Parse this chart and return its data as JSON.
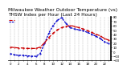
{
  "title": "Milwaukee Weather Outdoor Temperature (vs) THSW Index per Hour (Last 24 Hours)",
  "legend_temp": "Outdoor Temp",
  "legend_thsw": "THSW Index",
  "hours": [
    0,
    1,
    2,
    3,
    4,
    5,
    6,
    7,
    8,
    9,
    10,
    11,
    12,
    13,
    14,
    15,
    16,
    17,
    18,
    19,
    20,
    21,
    22,
    23
  ],
  "outdoor_temp": [
    10,
    9,
    8,
    8,
    7,
    7,
    7,
    10,
    20,
    32,
    42,
    50,
    55,
    58,
    60,
    58,
    55,
    52,
    48,
    44,
    40,
    36,
    30,
    26
  ],
  "thsw_index": [
    -5,
    -8,
    -9,
    -9,
    -10,
    -11,
    -11,
    -5,
    18,
    42,
    60,
    72,
    78,
    65,
    55,
    52,
    50,
    48,
    44,
    40,
    35,
    30,
    22,
    18
  ],
  "temp_color": "#cc0000",
  "thsw_color": "#0000cc",
  "bg_color": "#ffffff",
  "plot_bg": "#ffffff",
  "grid_color": "#888888",
  "ylim_min": -20,
  "ylim_max": 80,
  "ytick_values": [
    -20,
    -10,
    0,
    10,
    20,
    30,
    40,
    50,
    60,
    70,
    80
  ],
  "title_fontsize": 4.2,
  "label_fontsize": 3.2,
  "tick_fontsize": 2.8
}
